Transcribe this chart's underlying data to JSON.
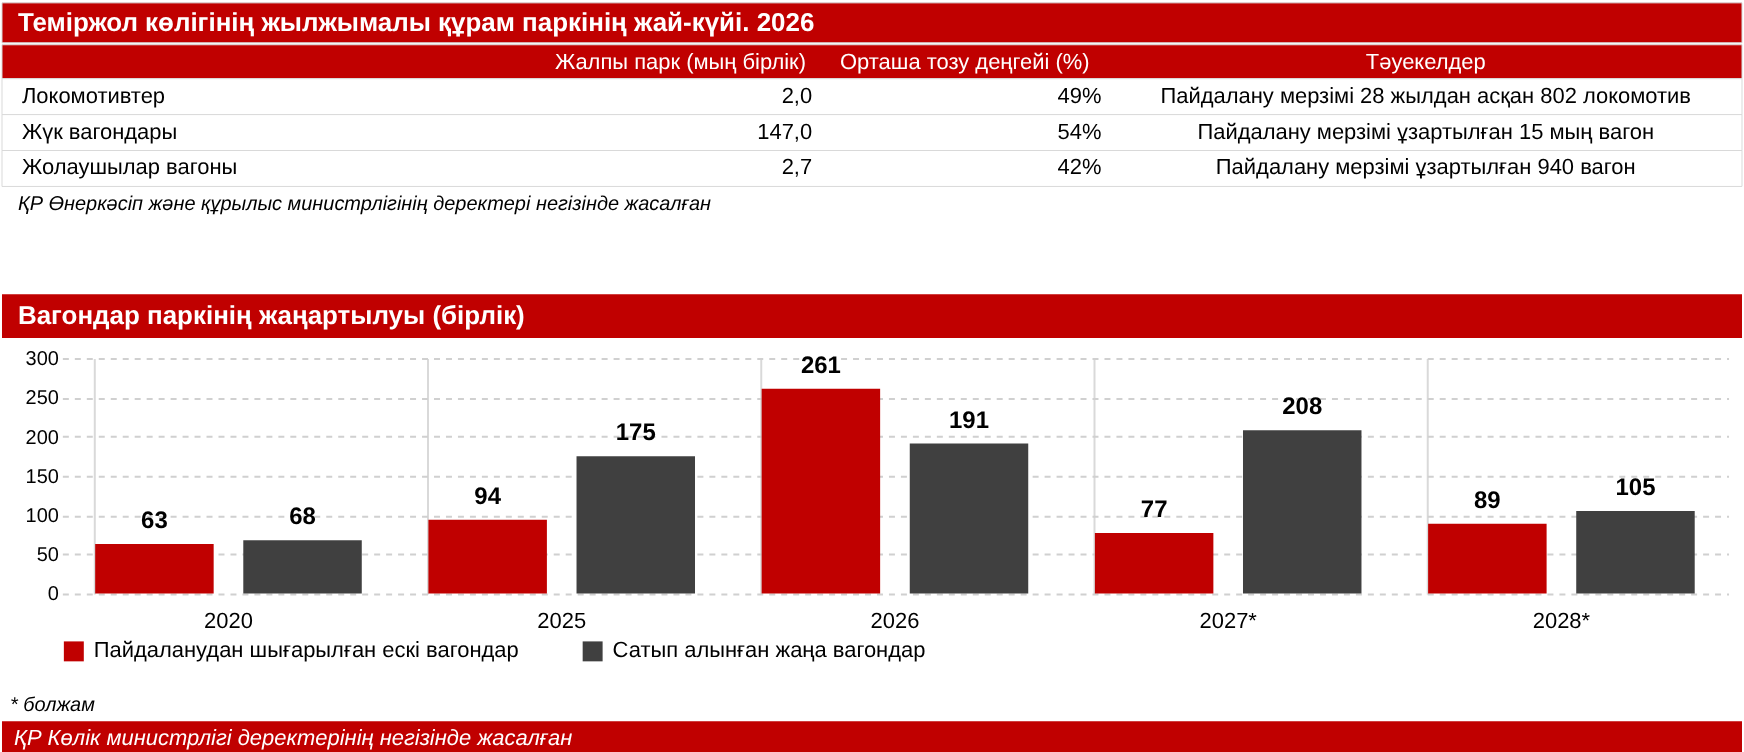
{
  "chart_data": [
    {
      "type": "other",
      "title": "Теміржол көлігінің жылжымалы құрам паркінің жай-күйі. 2026",
      "categories": [
        null,
        "Жалпы парк (мың бірлік)",
        "Орташа тозу деңгейі (%)",
        "Тәуекелдер"
      ],
      "y_categories": [
        "Локомотивтер",
        "Жүк вагондары",
        "Жолаушылар вагоны"
      ],
      "cell_labels": [
        [
          "2,0",
          "49%",
          "Пайдалану мерзімі 28 жылдан асқан 802 локомотив"
        ],
        [
          "147,0",
          "54%",
          "Пайдалану мерзімі ұзартылған 15 мың вагон"
        ],
        [
          "2,7",
          "42%",
          "Пайдалану мерзімі ұзартылған 940 вагон"
        ]
      ],
      "annotations": [
        "ҚР Өнеркәсіп және құрылыс министрлігінің деректері негізінде жасалған"
      ]
    },
    {
      "type": "bar",
      "title": "Вагондар паркінің жаңартылуы (бірлік)",
      "categories": [
        "2020",
        "2025",
        "2026",
        "2027*",
        "2028*"
      ],
      "series": [
        {
          "name": "Пайдаланудан шығарылған ескі вагондар",
          "color": "#c00000",
          "values": [
            63,
            94,
            261,
            77,
            89
          ]
        },
        {
          "name": "Сатып алынған жаңа вагондар",
          "color": "#404040",
          "values": [
            68,
            175,
            191,
            208,
            105
          ]
        }
      ],
      "ylim": [
        0,
        300
      ],
      "yticks": [
        0,
        50,
        100,
        150,
        200,
        250,
        300
      ],
      "grid": true,
      "legend": "bottom",
      "data_labels": true,
      "annotations": [
        "* болжам",
        "ҚР Көлік министрлігі деректерінің негізінде жасалған"
      ]
    }
  ]
}
